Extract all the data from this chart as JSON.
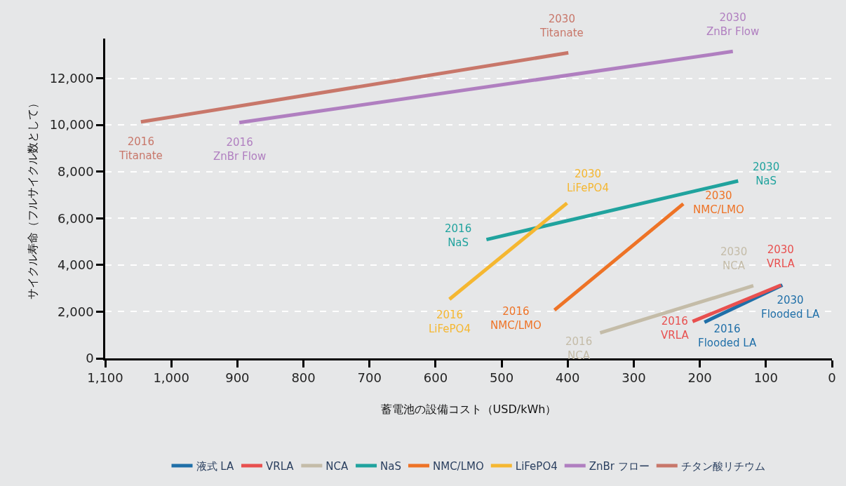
{
  "chart_data": {
    "type": "line",
    "xlabel": "蓄電池の設備コスト（USD/kWh）",
    "ylabel": "サイクル寿命（フルサイクル数として）",
    "xlim": [
      1100,
      0
    ],
    "xticks": [
      {
        "value": 1100,
        "label": "1,100"
      },
      {
        "value": 1000,
        "label": "1,000"
      },
      900,
      800,
      700,
      600,
      500,
      400,
      300,
      200,
      100,
      0
    ],
    "ylim": [
      0,
      13700
    ],
    "yticks": [
      0,
      {
        "value": 2000,
        "label": "2,000"
      },
      {
        "value": 4000,
        "label": "4,000"
      },
      {
        "value": 6000,
        "label": "6,000"
      },
      {
        "value": 8000,
        "label": "8,000"
      },
      {
        "value": 10000,
        "label": "10,000"
      },
      {
        "value": 12000,
        "label": "12,000"
      }
    ],
    "grid": "y",
    "legend": "bottom",
    "marker": "none",
    "line_style": "solid",
    "series": [
      {
        "name": "液式 LA",
        "color": "#1f6fa8",
        "x": [
          193,
          75
        ],
        "values": [
          1550,
          3140
        ]
      },
      {
        "name": "VRLA",
        "color": "#e8504f",
        "x": [
          211,
          77
        ],
        "values": [
          1580,
          3140
        ]
      },
      {
        "name": "NCA",
        "color": "#c4bca8",
        "x": [
          351,
          119
        ],
        "values": [
          1090,
          3110
        ]
      },
      {
        "name": "NaS",
        "color": "#20a39e",
        "x": [
          523,
          142
        ],
        "values": [
          5090,
          7600
        ]
      },
      {
        "name": "NMC/LMO",
        "color": "#ee7326",
        "x": [
          420,
          225
        ],
        "values": [
          2070,
          6620
        ]
      },
      {
        "name": "LiFePO4",
        "color": "#f5b731",
        "x": [
          579,
          401
        ],
        "values": [
          2530,
          6650
        ]
      },
      {
        "name": "ZnBr フロー",
        "color": "#b07fc0",
        "x": [
          897,
          150
        ],
        "values": [
          10100,
          13150
        ]
      },
      {
        "name": "チタン酸リチウム",
        "color": "#c8776a",
        "x": [
          1046,
          399
        ],
        "values": [
          10130,
          13090
        ]
      }
    ],
    "annotations": [
      {
        "text": "2016\nTitanate",
        "x": 1046,
        "y": 10130
      },
      {
        "text": "2030\nTitanate",
        "x": 399,
        "y": 13090
      },
      {
        "text": "2016\nZnBr Flow",
        "x": 897,
        "y": 10100
      },
      {
        "text": "2030\nZnBr Flow",
        "x": 150,
        "y": 13150
      },
      {
        "text": "2016\nNaS",
        "x": 523,
        "y": 5090
      },
      {
        "text": "2030\nNaS",
        "x": 142,
        "y": 7600
      },
      {
        "text": "2016\nLiFePO4",
        "x": 579,
        "y": 2530
      },
      {
        "text": "2030\nLiFePO4",
        "x": 401,
        "y": 6650
      },
      {
        "text": "2016\nNMC/LMO",
        "x": 420,
        "y": 2070
      },
      {
        "text": "2030\nNMC/LMO",
        "x": 225,
        "y": 6620
      },
      {
        "text": "2016\nNCA",
        "x": 351,
        "y": 1090
      },
      {
        "text": "2030\nNCA",
        "x": 119,
        "y": 3110
      },
      {
        "text": "2016\nVRLA",
        "x": 211,
        "y": 1580
      },
      {
        "text": "2030\nVRLA",
        "x": 77,
        "y": 3140
      },
      {
        "text": "2016\nFlooded LA",
        "x": 193,
        "y": 1550
      },
      {
        "text": "2030\nFlooded LA",
        "x": 75,
        "y": 3140
      }
    ]
  }
}
